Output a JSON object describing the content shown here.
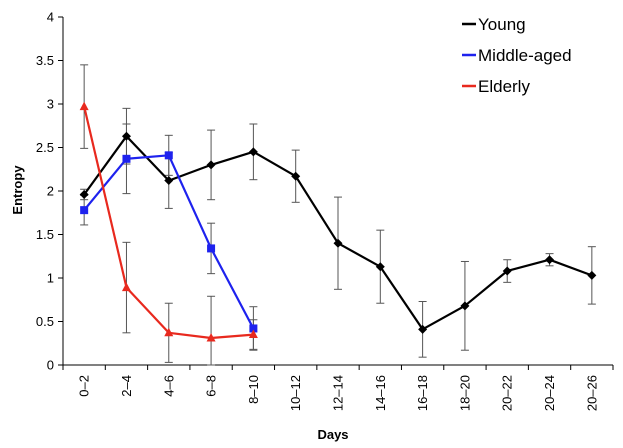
{
  "chart_data": {
    "type": "line",
    "title": "",
    "xlabel": "Days",
    "ylabel": "Entropy",
    "ylim": [
      0,
      4
    ],
    "y_ticks": [
      0,
      0.5,
      1,
      1.5,
      2,
      2.5,
      3,
      3.5,
      4
    ],
    "grid": false,
    "legend_position": "top-right",
    "categories": [
      "0–2",
      "2–4",
      "4–6",
      "6–8",
      "8–10",
      "10–12",
      "12–14",
      "14–16",
      "16–18",
      "18–20",
      "20–22",
      "20–24",
      "20–26"
    ],
    "series": [
      {
        "name": "Young",
        "color": "#000000",
        "marker": "diamond",
        "values": [
          1.96,
          2.63,
          2.12,
          2.3,
          2.45,
          2.17,
          1.4,
          1.13,
          0.41,
          0.68,
          1.08,
          1.21,
          1.03
        ],
        "error": [
          0.06,
          0.32,
          0.32,
          0.4,
          0.32,
          0.3,
          0.53,
          0.42,
          0.32,
          0.51,
          0.13,
          0.07,
          0.33
        ]
      },
      {
        "name": "Middle-aged",
        "color": "#1e22ee",
        "marker": "square",
        "values": [
          1.78,
          2.37,
          2.41,
          1.34,
          0.42,
          null,
          null,
          null,
          null,
          null,
          null,
          null,
          null
        ],
        "error": [
          0.17,
          0.4,
          0.23,
          0.29,
          0.25,
          null,
          null,
          null,
          null,
          null,
          null,
          null,
          null
        ]
      },
      {
        "name": "Elderly",
        "color": "#e8291e",
        "marker": "triangle",
        "values": [
          2.97,
          0.89,
          0.37,
          0.31,
          0.35,
          null,
          null,
          null,
          null,
          null,
          null,
          null,
          null
        ],
        "error": [
          0.48,
          0.52,
          0.34,
          0.48,
          0.17,
          null,
          null,
          null,
          null,
          null,
          null,
          null,
          null
        ]
      }
    ]
  }
}
